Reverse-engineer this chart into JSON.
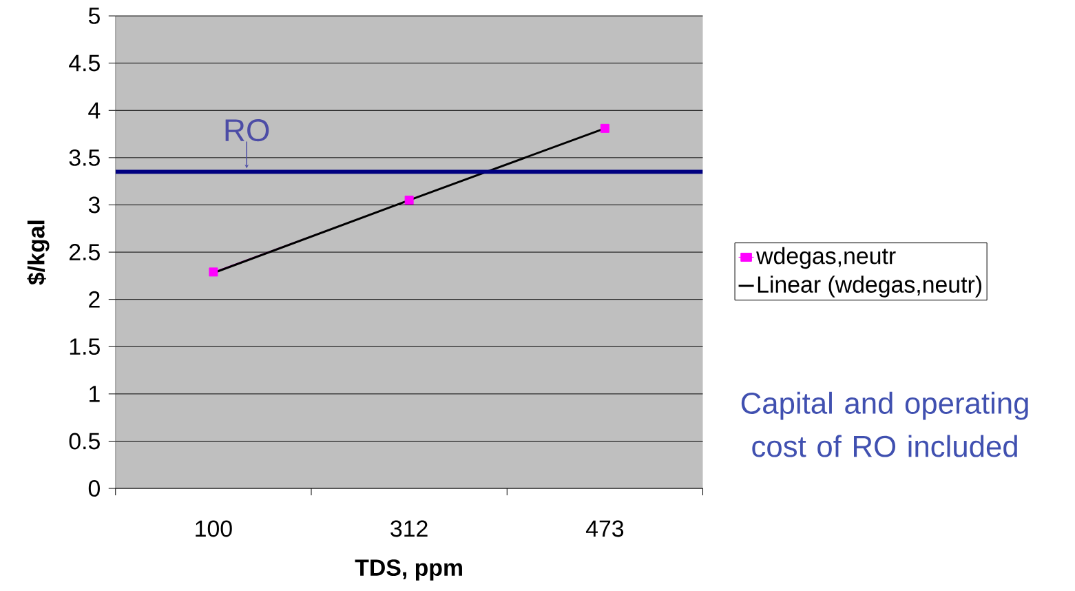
{
  "chart_data": {
    "type": "line",
    "categories": [
      "100",
      "312",
      "473"
    ],
    "series": [
      {
        "name": "wdegas,neutr",
        "color": "#ff00ff",
        "values": [
          2.29,
          3.05,
          3.81
        ],
        "marker": "square"
      },
      {
        "name": "Linear (wdegas,neutr)",
        "color": "#000000",
        "values": [
          2.28,
          3.05,
          3.81
        ],
        "marker": "none"
      }
    ],
    "xlabel": "TDS, ppm",
    "ylabel": "$/kgal",
    "ylim": [
      0,
      5
    ],
    "yticks": [
      0,
      0.5,
      1,
      1.5,
      2,
      2.5,
      3,
      3.5,
      4,
      4.5,
      5
    ],
    "grid": "y",
    "legend": "right",
    "ref_lines": [
      {
        "axis": "y",
        "value": 3.35,
        "label": "RO",
        "color": "#000080"
      }
    ],
    "annotations": [
      "Capital and operating cost of RO included"
    ]
  }
}
